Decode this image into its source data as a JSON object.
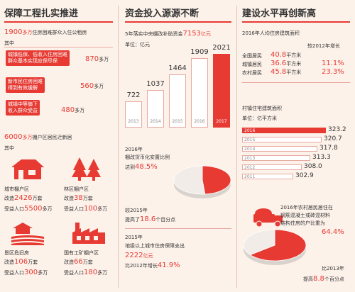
{
  "colors": {
    "accent": "#e63a33",
    "background": "#fdf2ea",
    "bar_outline": "#e8a89f",
    "pie_light": "#f1ece8"
  },
  "col1": {
    "title": "保障工程扎实推进",
    "rental": {
      "num": "1900",
      "unit": "多万",
      "text": "住房困难群众入住公租房"
    },
    "qizhong1": "其中",
    "groups": [
      {
        "lines": [
          "城镇低保、低收入住房困难",
          "群众基本实现应保尽保"
        ],
        "num": "870",
        "unit": "多万"
      },
      {
        "lines": [
          "新市民住房困难",
          "得到有效缓解"
        ],
        "num": "560",
        "unit": "多万"
      },
      {
        "lines": [
          "城镇中等偏下",
          "收入群众受益"
        ],
        "num": "480",
        "unit": "多万"
      }
    ],
    "relocate": {
      "num": "6000",
      "unit": "多万",
      "text": "棚户区居民迁新居"
    },
    "qizhong2": "其中",
    "areas": [
      {
        "icon": "city-shanty-house-icon",
        "name": "城市棚户区",
        "l1p": "改造",
        "l1n": "2426",
        "l1s": "万套",
        "l2p": "受益人口",
        "l2n": "5500",
        "l2s": "多万"
      },
      {
        "icon": "forest-tree-icon",
        "name": "林区棚户区",
        "l1p": "改造",
        "l1n": "38",
        "l1s": "万套",
        "l2p": "受益人口",
        "l2n": "100",
        "l2s": "多万"
      },
      {
        "icon": "farmland-field-icon",
        "name": "垦区危旧房",
        "l1p": "改造",
        "l1n": "106",
        "l1s": "万套",
        "l2p": "受益人口",
        "l2n": "300",
        "l2s": "多万"
      },
      {
        "icon": "factory-mine-icon",
        "name": "国有工矿棚户区",
        "l1p": "改造",
        "l1n": "66",
        "l1s": "万套",
        "l2p": "受益人口",
        "l2n": "180",
        "l2s": "多万"
      }
    ]
  },
  "col2": {
    "title": "资金投入源源不断",
    "subsidy_label": "5年落实中央棚改补助资金",
    "subsidy_value": "7153",
    "subsidy_unit": "亿元",
    "unit_label": "单位：亿元",
    "pie1": {
      "lines": [
        "2016年",
        "棚改货币化安置比例"
      ],
      "prefix": "达到",
      "value": "48.5%",
      "change_pre": "较2015年",
      "change_line2_pre": "提高了",
      "change_val": "18.6",
      "change_suf": "个百分点"
    },
    "guarantee": {
      "l1": "2015年",
      "l2": "地级以上城市住房保障支出",
      "value": "2222",
      "unit": "亿元",
      "cmp": "比2012年增长",
      "pct": "41.9%"
    }
  },
  "col3": {
    "title": "建设水平再创新高",
    "percap_title": "2016年人均住房建筑面积",
    "inc_header": "较2012年增长",
    "percap_rows": [
      {
        "label": "全国居民",
        "value": "40.8",
        "unit": "平方米",
        "inc": ""
      },
      {
        "label": "城镇居民",
        "value": "36.6",
        "unit": "平方米",
        "inc": "11.1%"
      },
      {
        "label": "农村居民",
        "value": "45.8",
        "unit": "平方米",
        "inc": "23.3%"
      }
    ],
    "town_title": "村镇住宅建筑面积",
    "town_unit": "单位：亿平方米",
    "pie2": {
      "l1": "2016年农村居民居住在",
      "l2": "钢筋混凝土或砖混材料",
      "l3": "结构住房的户比重为",
      "value": "64.4%",
      "cmp_pre": "比2013年",
      "cmp_l2": "提高",
      "cmp_val": "8.8",
      "cmp_suf": "个百分点"
    }
  },
  "chart_data": [
    {
      "type": "bar",
      "unit": "亿元",
      "categories": [
        "2013",
        "2014",
        "2015",
        "2016",
        "2017"
      ],
      "values": [
        722,
        1037,
        1464,
        1909,
        2021
      ],
      "highlight": "2017"
    },
    {
      "type": "bar",
      "orientation": "horizontal",
      "unit": "亿平方米",
      "categories": [
        "2016",
        "2015",
        "2014",
        "2013",
        "2012",
        "2011"
      ],
      "values": [
        323.2,
        320.7,
        317.8,
        313.3,
        308.0,
        302.9
      ],
      "value_labels": [
        "323.2",
        "320.7",
        "317.8",
        "313.3",
        "308.0",
        "302.9"
      ],
      "highlight": "2016"
    },
    {
      "type": "pie",
      "values": [
        48.5,
        51.5
      ],
      "highlight_value": "48.5%"
    },
    {
      "type": "pie",
      "values": [
        64.4,
        35.6
      ],
      "highlight_value": "64.4%"
    }
  ]
}
